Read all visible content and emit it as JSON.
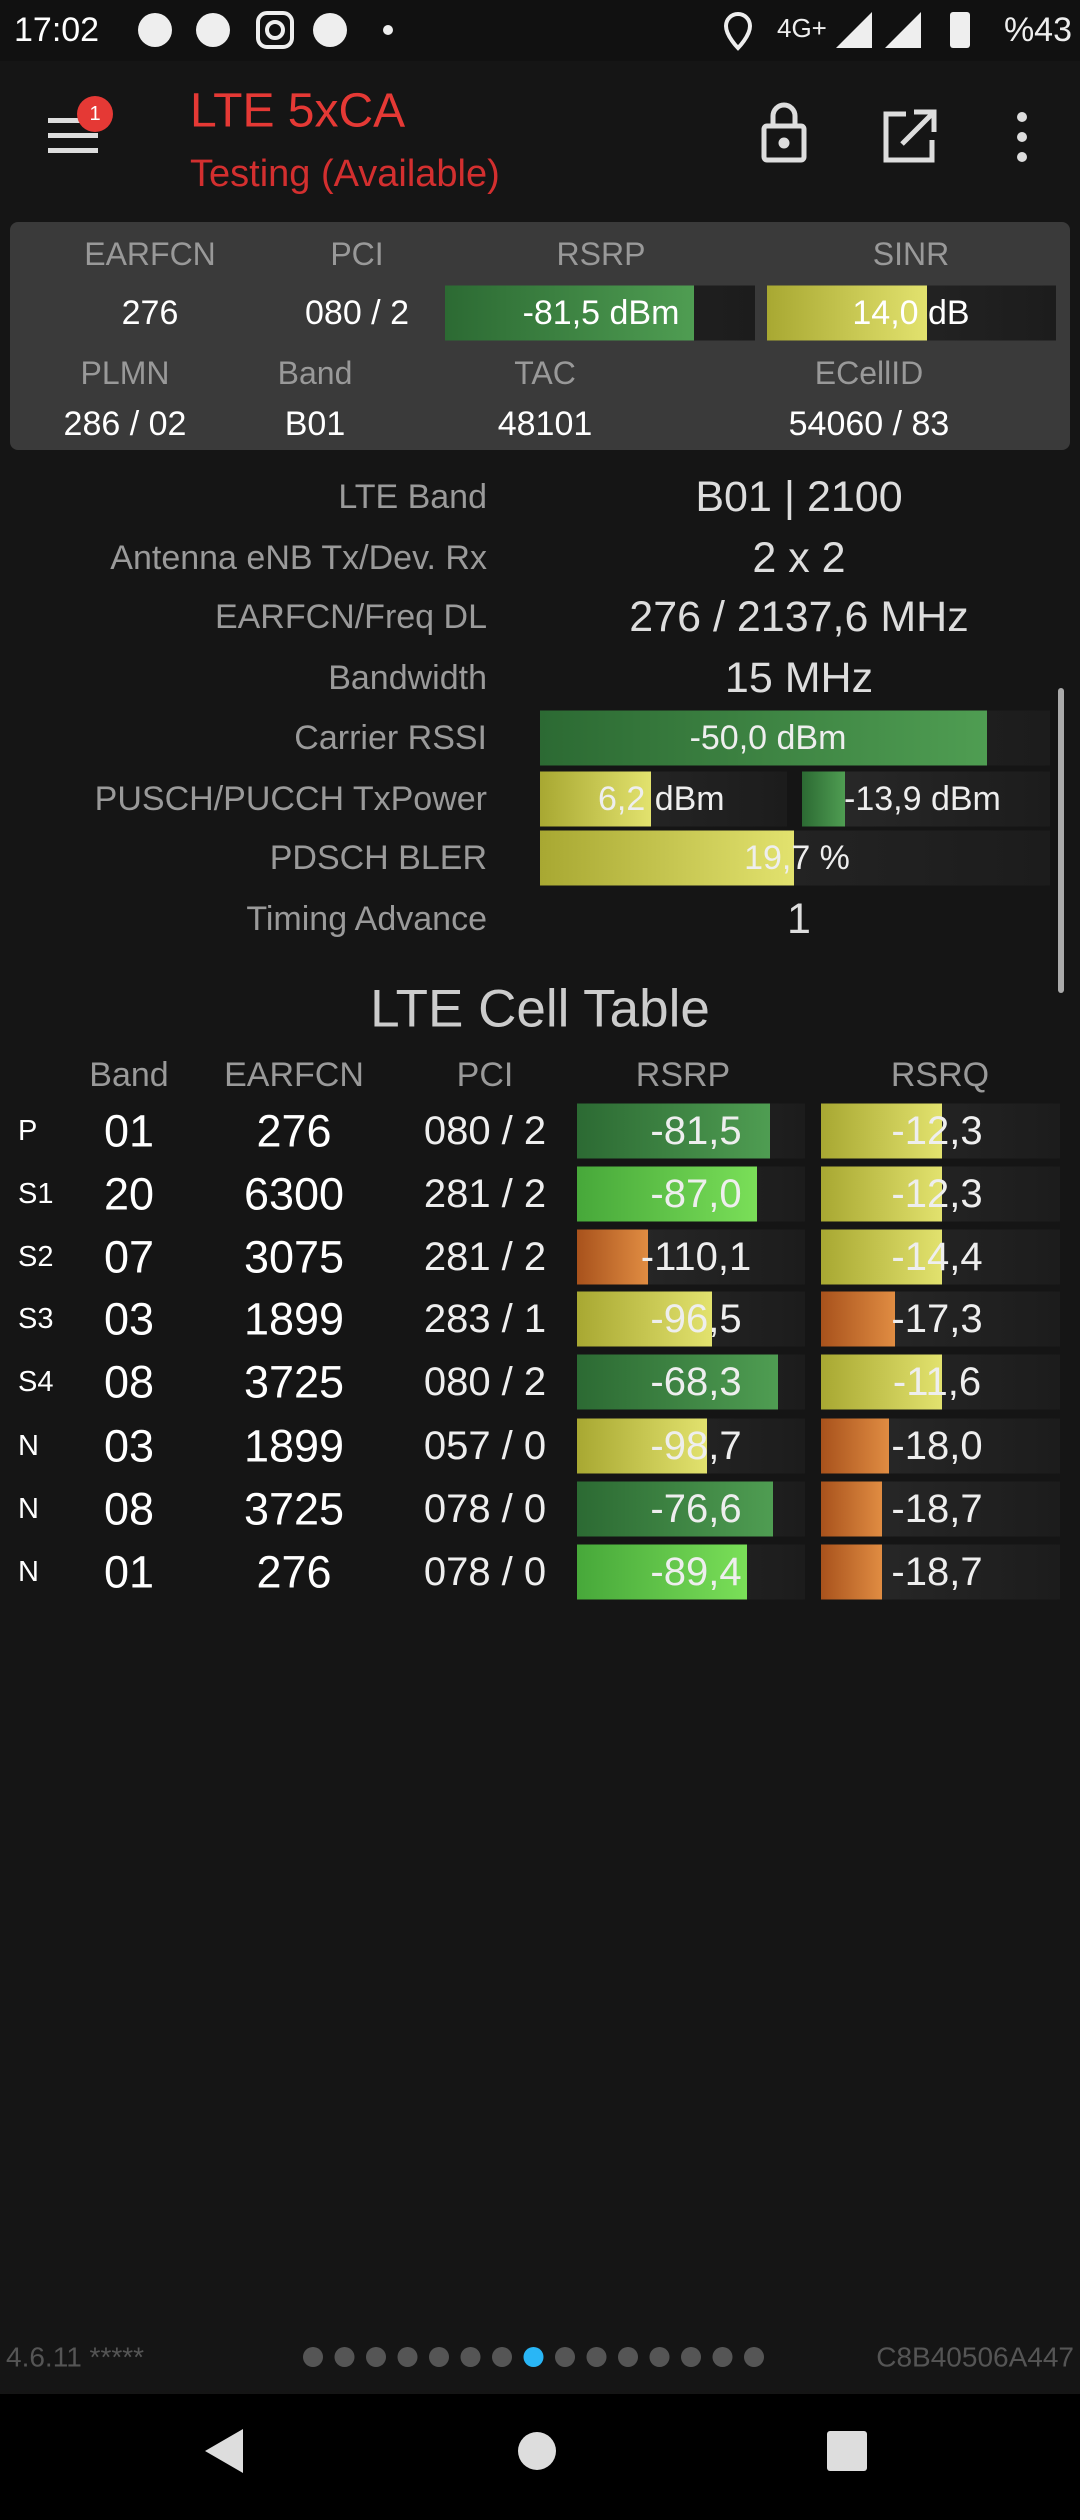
{
  "status_bar": {
    "time": "17:02",
    "network": "4G+",
    "battery": "%43"
  },
  "toolbar": {
    "badge": "1",
    "title": "LTE 5xCA",
    "subtitle": "Testing (Available)"
  },
  "summary": {
    "headers": [
      "EARFCN",
      "PCI",
      "RSRP",
      "SINR"
    ],
    "values": [
      "276",
      "080 / 2",
      "-81,5 dBm",
      "14,0 dB"
    ],
    "headers2": [
      "PLMN",
      "Band",
      "TAC",
      "ECellID"
    ],
    "values2": [
      "286 / 02",
      "B01",
      "48101",
      "54060 / 83"
    ]
  },
  "details": [
    {
      "label": "LTE Band",
      "value": "B01 | 2100"
    },
    {
      "label": "Antenna eNB Tx/Dev. Rx",
      "value": "2 x 2"
    },
    {
      "label": "EARFCN/Freq DL",
      "value": "276 / 2137,6 MHz"
    },
    {
      "label": "Bandwidth",
      "value": "15 MHz"
    },
    {
      "label": "Carrier RSSI",
      "value": "-50,0 dBm"
    },
    {
      "label": "PUSCH/PUCCH TxPower",
      "values": [
        "6,2 dBm",
        "-13,9 dBm"
      ]
    },
    {
      "label": "PDSCH BLER",
      "value": "19,7 %"
    },
    {
      "label": "Timing Advance",
      "value": "1"
    }
  ],
  "cell_table": {
    "title": "LTE Cell Table",
    "columns": [
      "Band",
      "EARFCN",
      "PCI",
      "RSRP",
      "RSRQ"
    ],
    "rows": [
      [
        "P",
        "01",
        "276",
        "080 / 2",
        "-81,5",
        "-12,3"
      ],
      [
        "S1",
        "20",
        "6300",
        "281 / 2",
        "-87,0",
        "-12,3"
      ],
      [
        "S2",
        "07",
        "3075",
        "281 / 2",
        "-110,1",
        "-14,4"
      ],
      [
        "S3",
        "03",
        "1899",
        "283 / 1",
        "-96,5",
        "-17,3"
      ],
      [
        "S4",
        "08",
        "3725",
        "080 / 2",
        "-68,3",
        "-11,6"
      ],
      [
        "N",
        "03",
        "1899",
        "057 / 0",
        "-98,7",
        "-18,0"
      ],
      [
        "N",
        "08",
        "3725",
        "078 / 0",
        "-76,6",
        "-18,7"
      ],
      [
        "N",
        "01",
        "276",
        "078 / 0",
        "-89,4",
        "-18,7"
      ]
    ]
  },
  "footer": {
    "version": "4.6.11 *****",
    "device_id": "C8B40506A447"
  }
}
